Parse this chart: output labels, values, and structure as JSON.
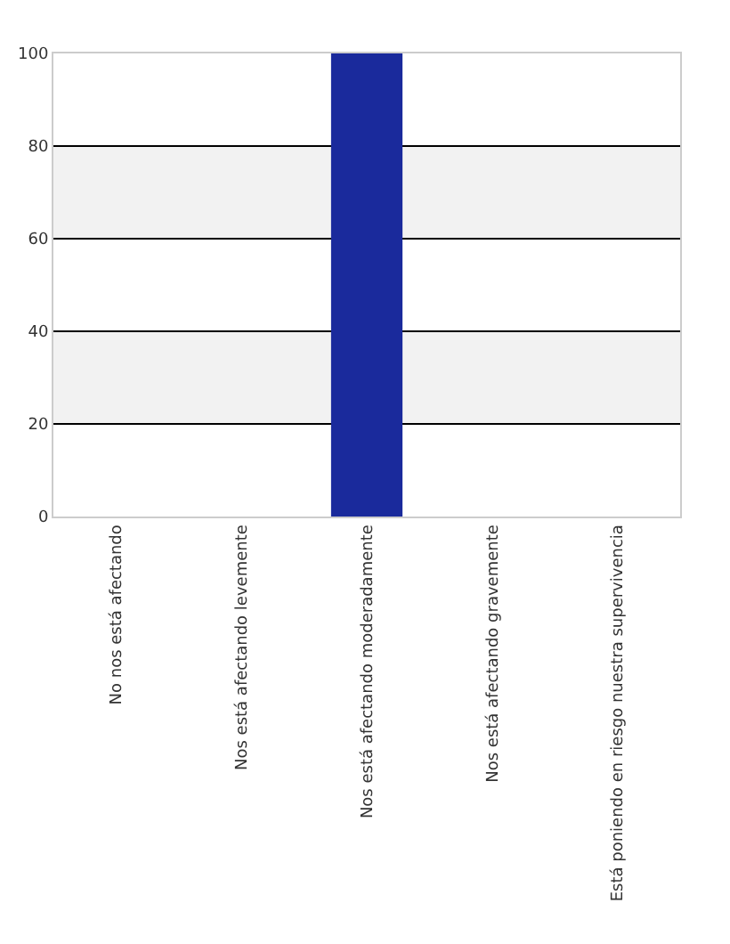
{
  "chart_data": {
    "type": "bar",
    "categories": [
      "No nos está afectando",
      "Nos está afectando levemente",
      "Nos está afectando moderadamente",
      "Nos está afectando gravemente",
      "Está poniendo en riesgo nuestra supervivencia"
    ],
    "values": [
      0,
      0,
      100,
      0,
      0
    ],
    "color": "#1a2a9c",
    "ylim": [
      0,
      100
    ],
    "yticks": [
      0,
      20,
      40,
      60,
      80,
      100
    ],
    "grid": "y"
  }
}
